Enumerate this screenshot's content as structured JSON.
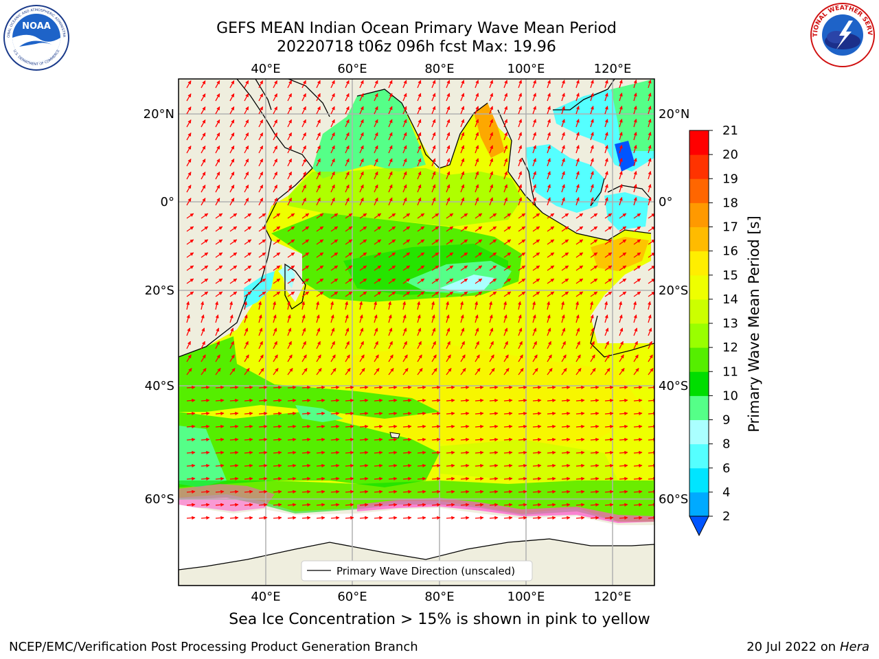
{
  "header": {
    "title_line1": "GEFS MEAN Indian Ocean Primary Wave Mean Period",
    "title_line2": "20220718 t06z 096h fcst   Max: 19.96",
    "left_logo_text": "NOAA",
    "left_logo_ring_top": "NATIONAL OCEANIC AND ATMOSPHERIC ADMINISTRATION",
    "left_logo_ring_bottom": "U.S. DEPARTMENT OF COMMERCE",
    "right_logo_ring": "NATIONAL WEATHER SERVICE"
  },
  "map": {
    "lon_labels": [
      "40°E",
      "60°E",
      "80°E",
      "100°E",
      "120°E"
    ],
    "lat_labels": [
      "20°N",
      "0°",
      "20°S",
      "40°S",
      "60°S"
    ],
    "legend_label": "Primary Wave Direction (unscaled)"
  },
  "colorbar": {
    "label": "Primary Wave Mean Period [s]",
    "ticks": [
      "2",
      "4",
      "6",
      "8",
      "9",
      "10",
      "11",
      "12",
      "13",
      "14",
      "15",
      "16",
      "17",
      "18",
      "19",
      "20",
      "21"
    ],
    "colors": [
      "#0055ff",
      "#00aaff",
      "#00e5ff",
      "#55ffff",
      "#aaffff",
      "#55ff88",
      "#00dd00",
      "#55ee00",
      "#99ff00",
      "#ccff00",
      "#eeff00",
      "#ffee00",
      "#ffbb00",
      "#ff9900",
      "#ff6600",
      "#ff3300",
      "#ff0000"
    ]
  },
  "caption": "Sea Ice Concentration > 15% is shown in pink to yellow",
  "footer": {
    "left": "NCEP/EMC/Verification Post Processing Product Generation Branch",
    "right_date": "20 Jul 2022 on ",
    "right_host": "Hera"
  }
}
